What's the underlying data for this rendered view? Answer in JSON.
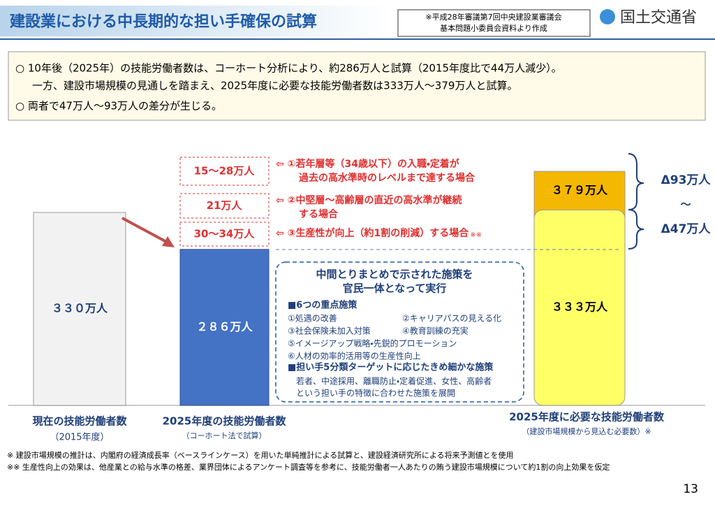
{
  "header": {
    "title": "建設業における中長期的な担い手確保の試算",
    "source_note": [
      "※平成28年審議第7回中央建設業審議会",
      "基本問題小委員会資料より作成"
    ],
    "ministry": "国土交通省"
  },
  "summary": [
    "○ 10年後（2025年）の技能労働者数は、コーホート分析により、約286万人と試算（2015年度比で44万人減少）。",
    "一方、建設市場規模の見通しを踏まえ、2025年度に必要な技能労働者数は333万人～379万人と試算。",
    "○ 両者で47万人～93万人の差分が生じる。"
  ],
  "bars": [
    {
      "label": "３３０万人",
      "value": 330,
      "caption": "現在の技能労働者数",
      "sub_caption": "（2015年度）"
    },
    {
      "label": "２８６万人",
      "value": 286,
      "caption": "2025年度の技能労働者数",
      "sub_caption": "（コーホート法で試算）"
    }
  ],
  "required": {
    "low": {
      "label": "３３３万人",
      "value": 333
    },
    "high": {
      "label": "３７９万人",
      "value": 379
    },
    "caption": "2025年度に必要な技能労働者数",
    "sub_caption": "（建設市場規模から見込む必要数）※"
  },
  "scenarios": [
    {
      "range": "15～28万人",
      "text": [
        "⇦ ①若年層等（34歳以下）の入職・定着が",
        "過去の高水準時のレベルまで達する場合"
      ]
    },
    {
      "range": "21万人",
      "text": [
        "⇦ ②中堅層～高齢層の直近の高水準が継続",
        "する場合"
      ]
    },
    {
      "range": "30～34万人",
      "text": [
        "⇦ ③生産性が向上（約1割の削減）する場合"
      ],
      "mark": "※※"
    }
  ],
  "gaps": [
    "Δ93万人",
    "～",
    "Δ47万人"
  ],
  "measures": {
    "title": [
      "中間とりまとめで示された施策を",
      "官民一体となって実行"
    ],
    "heading1": "■6つの重点施策",
    "items": [
      [
        "①処遇の改善",
        "②キャリアパスの見える化"
      ],
      [
        "③社会保険未加入対策",
        "④教育訓練の充実"
      ],
      [
        "⑤イメージアップ戦略・先鋭的プロモーション"
      ],
      [
        "⑥人材の効率的活用等の生産性向上"
      ]
    ],
    "heading2": "■担い手5分類ターゲットに応じたきめ細かな施策",
    "detail": [
      "若者、中途採用、離職防止・定着促進、女性、高齢者",
      "という担い手の特徴に合わせた施策を展開"
    ]
  },
  "footnotes": [
    "※ 建設市場規模の推計は、内閣府の経済成長率（ベースラインケース）を用いた単純推計による試算と、建設経済研究所による将来予測値とを使用",
    "※※ 生産性向上の効果は、他産業との給与水準の格差、業界団体によるアンケート調査等を参考に、技能労働者一人あたりの賄う建設市場規模について約1割の向上効果を仮定"
  ],
  "page": "13"
}
